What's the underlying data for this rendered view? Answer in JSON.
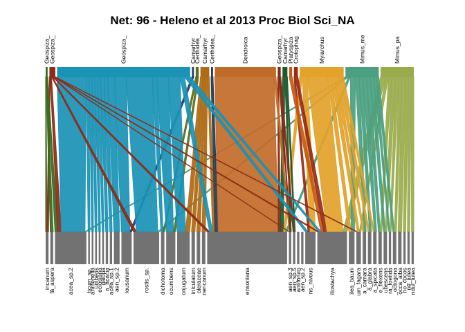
{
  "chart_data": {
    "type": "bipartite-network",
    "title": "Net: 96 - Heleno et al 2013 Proc Biol Sci_NA",
    "lower_bar_color": "#727272",
    "higher_level": [
      {
        "label": "Geospiza_",
        "color": "#3a6a1e",
        "share": 0.004
      },
      {
        "label": "Geospiza_",
        "color": "#8e2a16",
        "share": 0.012
      },
      {
        "label": "Geospiza_",
        "color": "#1a93b5",
        "share": 0.272
      },
      {
        "label": "Camarhyr",
        "color": "#2a3a72",
        "share": 0.004
      },
      {
        "label": "Certhidea_",
        "color": "#5e6e1c",
        "share": 0.006
      },
      {
        "label": "Camarhyr",
        "color": "#ae6a14",
        "share": 0.018
      },
      {
        "label": "Certhidea_",
        "color": "#1e3a5a",
        "share": 0.004
      },
      {
        "label": "Dendroica",
        "color": "#c16b28",
        "share": 0.125
      },
      {
        "label": "Geospiza_",
        "color": "#8a2a14",
        "share": 0.006
      },
      {
        "label": "Camarhyr",
        "color": "#1e5a30",
        "share": 0.01
      },
      {
        "label": "Platyspiza",
        "color": "#c65a14",
        "share": 0.006
      },
      {
        "label": "Crotophag",
        "color": "#982c18",
        "share": 0.008
      },
      {
        "label": "Myiarchus",
        "color": "#e3a22a",
        "share": 0.09
      },
      {
        "label": "Mimus_me",
        "color": "#4aa080",
        "share": 0.068
      },
      {
        "label": "Mimus_pa",
        "color": "#9aab4c",
        "share": 0.068
      }
    ],
    "lower_level": [
      {
        "label": "_incanum",
        "share": 0.005
      },
      {
        "label": "la_aspera",
        "share": 0.005
      },
      {
        "label": "acea_sp.2",
        "share": 0.055
      },
      {
        "label": "ticum_sp.",
        "share": 0.003
      },
      {
        "label": "ahrifenella",
        "share": 0.003
      },
      {
        "label": "umbens",
        "share": 0.003
      },
      {
        "label": "eciosiana",
        "share": 0.003
      },
      {
        "label": "galopa",
        "share": 0.003
      },
      {
        "label": "a_acacia",
        "share": 0.004
      },
      {
        "label": "acea_sp.1",
        "share": 0.004
      },
      {
        "label": "aen_sp.2",
        "share": 0.01
      },
      {
        "label": "lousanum",
        "share": 0.018
      },
      {
        "label": "rostis_sp.",
        "share": 0.045
      },
      {
        "label": "dichotoma",
        "share": 0.006
      },
      {
        "label": "ocumbens",
        "share": 0.016
      },
      {
        "label": "onjugatum",
        "share": 0.022
      },
      {
        "label": "iniculatum",
        "share": 0.006
      },
      {
        "label": "oleraceae",
        "share": 0.006
      },
      {
        "label": "nericanum",
        "share": 0.006
      },
      {
        "label": "ensoniana",
        "share": 0.14
      },
      {
        "label": "aen_sp.3",
        "share": 0.004
      },
      {
        "label": "aen_sp.5",
        "share": 0.004
      },
      {
        "label": "antiforum",
        "share": 0.004
      },
      {
        "label": "aen_sp.2",
        "share": 0.004
      },
      {
        "label": "ns_niveus",
        "share": 0.018
      },
      {
        "label": "iliostachya",
        "share": 0.052
      },
      {
        "label": "ilea_baurii",
        "share": 0.01
      },
      {
        "label": "um_fagara",
        "share": 0.008
      },
      {
        "label": "a_camara",
        "share": 0.006
      },
      {
        "label": "a_glabra",
        "share": 0.006
      },
      {
        "label": "a_spicata",
        "share": 0.006
      },
      {
        "label": "e_flexens",
        "share": 0.006
      },
      {
        "label": "ubescens",
        "share": 0.006
      },
      {
        "label": "ra_foetida",
        "share": 0.004
      },
      {
        "label": "_octogona",
        "share": 0.006
      },
      {
        "label": "occa_alba",
        "share": 0.006
      },
      {
        "label": "ho_cocos",
        "share": 0.004
      },
      {
        "label": "ne_lutea",
        "share": 0.004
      },
      {
        "label": "ndul_lutea",
        "share": 0.004
      }
    ],
    "links": [
      [
        0,
        0,
        0.6
      ],
      [
        0,
        1,
        0.6
      ],
      [
        0,
        2,
        1.2
      ],
      [
        1,
        0,
        0.8
      ],
      [
        1,
        2,
        1.5
      ],
      [
        1,
        12,
        1.2
      ],
      [
        1,
        19,
        1.2
      ],
      [
        1,
        25,
        0.8
      ],
      [
        1,
        27,
        0.6
      ],
      [
        1,
        20,
        0.5
      ],
      [
        2,
        2,
        10
      ],
      [
        2,
        3,
        1
      ],
      [
        2,
        4,
        1
      ],
      [
        2,
        5,
        1
      ],
      [
        2,
        6,
        1
      ],
      [
        2,
        7,
        1
      ],
      [
        2,
        8,
        1.2
      ],
      [
        2,
        9,
        1.2
      ],
      [
        2,
        10,
        2.4
      ],
      [
        2,
        11,
        4
      ],
      [
        2,
        12,
        9
      ],
      [
        2,
        13,
        1.5
      ],
      [
        2,
        14,
        4
      ],
      [
        2,
        15,
        4
      ],
      [
        2,
        19,
        1.5
      ],
      [
        2,
        24,
        1
      ],
      [
        2,
        25,
        1
      ],
      [
        3,
        11,
        0.8
      ],
      [
        4,
        13,
        1
      ],
      [
        4,
        14,
        1
      ],
      [
        5,
        15,
        2
      ],
      [
        5,
        16,
        1.2
      ],
      [
        5,
        17,
        1.2
      ],
      [
        5,
        18,
        1.2
      ],
      [
        5,
        19,
        1.2
      ],
      [
        6,
        19,
        1.6
      ],
      [
        7,
        19,
        30
      ],
      [
        7,
        20,
        1
      ],
      [
        8,
        19,
        1
      ],
      [
        8,
        20,
        1
      ],
      [
        8,
        21,
        1
      ],
      [
        9,
        19,
        1.6
      ],
      [
        9,
        20,
        1
      ],
      [
        9,
        21,
        0.8
      ],
      [
        10,
        25,
        1.4
      ],
      [
        11,
        25,
        1.6
      ],
      [
        11,
        24,
        0.8
      ],
      [
        12,
        25,
        8
      ],
      [
        12,
        24,
        2
      ],
      [
        12,
        19,
        1
      ],
      [
        12,
        26,
        1.5
      ],
      [
        12,
        27,
        1.5
      ],
      [
        12,
        28,
        1.2
      ],
      [
        12,
        29,
        1.2
      ],
      [
        12,
        30,
        1
      ],
      [
        13,
        26,
        2
      ],
      [
        13,
        28,
        1.5
      ],
      [
        13,
        29,
        1.5
      ],
      [
        13,
        30,
        1.5
      ],
      [
        13,
        31,
        1.5
      ],
      [
        13,
        32,
        1.5
      ],
      [
        13,
        33,
        1
      ],
      [
        13,
        34,
        1
      ],
      [
        13,
        19,
        0.8
      ],
      [
        13,
        2,
        0.6
      ],
      [
        13,
        12,
        0.6
      ],
      [
        14,
        25,
        2
      ],
      [
        14,
        27,
        1
      ],
      [
        14,
        31,
        1.2
      ],
      [
        14,
        32,
        1.5
      ],
      [
        14,
        33,
        1.2
      ],
      [
        14,
        34,
        1.2
      ],
      [
        14,
        35,
        1.5
      ],
      [
        14,
        36,
        1
      ],
      [
        14,
        37,
        1
      ],
      [
        14,
        38,
        1
      ]
    ]
  }
}
